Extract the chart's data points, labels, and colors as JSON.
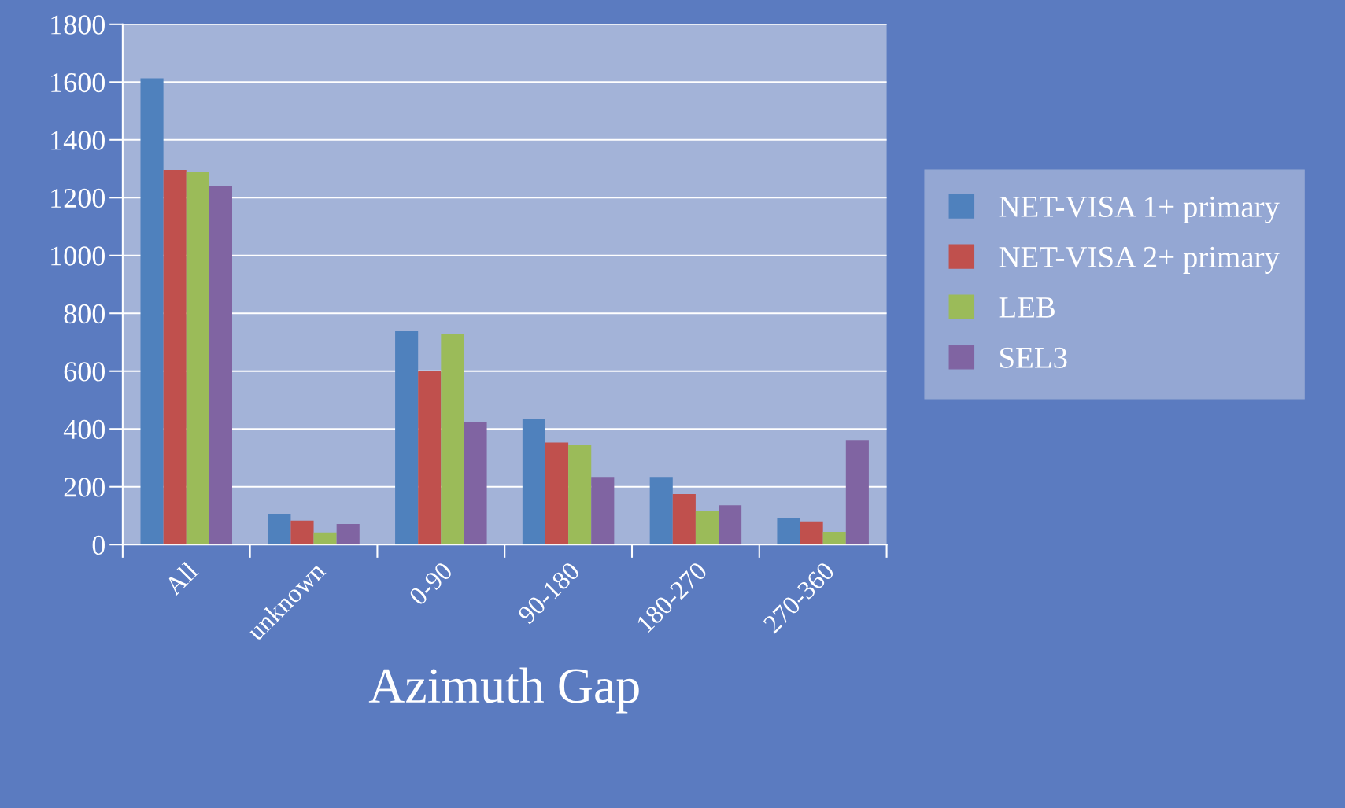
{
  "chart_data": {
    "type": "bar",
    "xlabel": "Azimuth Gap",
    "categories": [
      "All",
      "unknown",
      "0-90",
      "90-180",
      "180-270",
      "270-360"
    ],
    "series": [
      {
        "name": "NET-VISA 1+ primary",
        "color": "#4f81bd",
        "values": [
          1613,
          107,
          738,
          433,
          234,
          92
        ]
      },
      {
        "name": "NET-VISA 2+ primary",
        "color": "#c0504d",
        "values": [
          1296,
          83,
          599,
          353,
          175,
          80
        ]
      },
      {
        "name": "LEB",
        "color": "#9bbb59",
        "values": [
          1290,
          42,
          729,
          344,
          116,
          44
        ]
      },
      {
        "name": "SEL3",
        "color": "#8064a2",
        "values": [
          1239,
          71,
          424,
          234,
          136,
          362
        ]
      }
    ],
    "ylim": [
      0,
      1800
    ],
    "yticks": [
      0,
      200,
      400,
      600,
      800,
      1000,
      1200,
      1400,
      1600,
      1800
    ],
    "grid": "y",
    "legend": "right"
  }
}
